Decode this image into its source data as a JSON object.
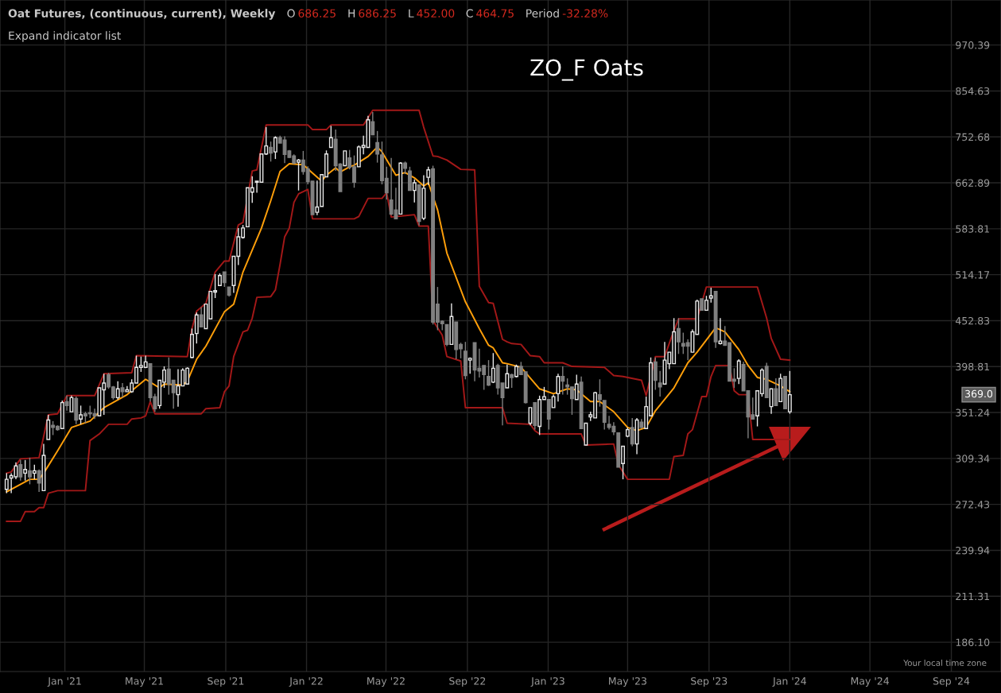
{
  "chart_data": {
    "type": "candlestick",
    "title": "ZO_F Oats",
    "subtitle": "Oat Futures, (continuous, current), Weekly",
    "annotations": [
      "O",
      "686.25",
      "H",
      "686.25",
      "L",
      "452.00",
      "C",
      "464.75",
      "Period",
      "-32.28%",
      "Expand indicator list",
      "Your local time zone",
      {
        "text": "369.0",
        "y": 369
      }
    ],
    "x": [
      "2020-10-05",
      "2020-10-12",
      "2020-10-19",
      "2020-10-26",
      "2020-11-02",
      "2020-11-09",
      "2020-11-16",
      "2020-11-23",
      "2020-11-30",
      "2020-12-07",
      "2020-12-14",
      "2020-12-21",
      "2020-12-28",
      "2021-01-04",
      "2021-01-11",
      "2021-01-18",
      "2021-01-25",
      "2021-02-01",
      "2021-02-08",
      "2021-02-15",
      "2021-02-22",
      "2021-03-01",
      "2021-03-08",
      "2021-03-15",
      "2021-03-22",
      "2021-03-29",
      "2021-04-05",
      "2021-04-12",
      "2021-04-19",
      "2021-04-26",
      "2021-05-03",
      "2021-05-10",
      "2021-05-17",
      "2021-05-24",
      "2021-05-31",
      "2021-06-07",
      "2021-06-14",
      "2021-06-21",
      "2021-06-28",
      "2021-07-05",
      "2021-07-12",
      "2021-07-19",
      "2021-07-26",
      "2021-08-02",
      "2021-08-09",
      "2021-08-16",
      "2021-08-23",
      "2021-08-30",
      "2021-09-06",
      "2021-09-13",
      "2021-09-20",
      "2021-09-27",
      "2021-10-04",
      "2021-10-11",
      "2021-10-18",
      "2021-10-25",
      "2021-11-01",
      "2021-11-08",
      "2021-11-15",
      "2021-11-22",
      "2021-11-29",
      "2021-12-06",
      "2021-12-13",
      "2021-12-20",
      "2021-12-27",
      "2022-01-03",
      "2022-01-10",
      "2022-01-17",
      "2022-01-24",
      "2022-01-31",
      "2022-02-07",
      "2022-02-14",
      "2022-02-21",
      "2022-02-28",
      "2022-03-07",
      "2022-03-14",
      "2022-03-21",
      "2022-03-28",
      "2022-04-04",
      "2022-04-11",
      "2022-04-18",
      "2022-04-25",
      "2022-05-02",
      "2022-05-09",
      "2022-05-16",
      "2022-05-23",
      "2022-05-30",
      "2022-06-06",
      "2022-06-13",
      "2022-06-20",
      "2022-06-27",
      "2022-07-04",
      "2022-07-11",
      "2022-07-18",
      "2022-07-25",
      "2022-08-01",
      "2022-08-08",
      "2022-08-15",
      "2022-08-22",
      "2022-08-29",
      "2022-09-05",
      "2022-09-12",
      "2022-09-19",
      "2022-09-26",
      "2022-10-03",
      "2022-10-10",
      "2022-10-17",
      "2022-10-24",
      "2022-10-31",
      "2022-11-07",
      "2022-11-14",
      "2022-11-21",
      "2022-11-28",
      "2022-12-05",
      "2022-12-12",
      "2022-12-19",
      "2022-12-26",
      "2023-01-02",
      "2023-01-09",
      "2023-01-16",
      "2023-01-23",
      "2023-01-30",
      "2023-02-06",
      "2023-02-13",
      "2023-02-20",
      "2023-02-27",
      "2023-03-06",
      "2023-03-13",
      "2023-03-20",
      "2023-03-27",
      "2023-04-03",
      "2023-04-10",
      "2023-04-17",
      "2023-04-24",
      "2023-05-01",
      "2023-05-08",
      "2023-05-15",
      "2023-05-22",
      "2023-05-29",
      "2023-06-05",
      "2023-06-12",
      "2023-06-19",
      "2023-06-26",
      "2023-07-03",
      "2023-07-10",
      "2023-07-17",
      "2023-07-24",
      "2023-07-31",
      "2023-08-07",
      "2023-08-14",
      "2023-08-21",
      "2023-08-28",
      "2023-09-04",
      "2023-09-11",
      "2023-09-18",
      "2023-09-25",
      "2023-10-02",
      "2023-10-09",
      "2023-10-16",
      "2023-10-23",
      "2023-10-30",
      "2023-11-06",
      "2023-11-13",
      "2023-11-20",
      "2023-11-27",
      "2023-12-04",
      "2023-12-11",
      "2023-12-18",
      "2023-12-25",
      "2024-01-01"
    ],
    "ohlc": [
      [
        284,
        297,
        281,
        292
      ],
      [
        293,
        297,
        281,
        295
      ],
      [
        294,
        306,
        292,
        303
      ],
      [
        304,
        308,
        291,
        294
      ],
      [
        297,
        308,
        291,
        300
      ],
      [
        299,
        310,
        288,
        294
      ],
      [
        297,
        304,
        292,
        299
      ],
      [
        299,
        300,
        282,
        289
      ],
      [
        283,
        322,
        283,
        312
      ],
      [
        326,
        349,
        326,
        344
      ],
      [
        339,
        343,
        330,
        337
      ],
      [
        338,
        339,
        334,
        335
      ],
      [
        336,
        363,
        336,
        361
      ],
      [
        362,
        368,
        353,
        358
      ],
      [
        352,
        368,
        352,
        366
      ],
      [
        365,
        367,
        340,
        344
      ],
      [
        345,
        358,
        340,
        349
      ],
      [
        350,
        352,
        341,
        348
      ],
      [
        351,
        358,
        346,
        350
      ],
      [
        350,
        355,
        345,
        348
      ],
      [
        348,
        376,
        348,
        376
      ],
      [
        374,
        391,
        349,
        381
      ],
      [
        390,
        392,
        375,
        377
      ],
      [
        377,
        378,
        364,
        366
      ],
      [
        366,
        383,
        364,
        375
      ],
      [
        376,
        381,
        366,
        372
      ],
      [
        372,
        378,
        372,
        374
      ],
      [
        372,
        385,
        371,
        381
      ],
      [
        381,
        411,
        381,
        398
      ],
      [
        398,
        410,
        393,
        400
      ],
      [
        398,
        411,
        397,
        404
      ],
      [
        402,
        402,
        362,
        366
      ],
      [
        367,
        370,
        352,
        355
      ],
      [
        358,
        384,
        355,
        384
      ],
      [
        382,
        399,
        376,
        395
      ],
      [
        396,
        409,
        369,
        380
      ],
      [
        384,
        384,
        355,
        371
      ],
      [
        369,
        396,
        357,
        378
      ],
      [
        378,
        397,
        378,
        395
      ],
      [
        380,
        398,
        380,
        397
      ],
      [
        409,
        443,
        408,
        436
      ],
      [
        437,
        463,
        425,
        460
      ],
      [
        460,
        470,
        445,
        445
      ],
      [
        443,
        474,
        443,
        474
      ],
      [
        455,
        491,
        455,
        491
      ],
      [
        490,
        515,
        482,
        492
      ],
      [
        499,
        516,
        499,
        513
      ],
      [
        518,
        518,
        497,
        503
      ],
      [
        497,
        497,
        484,
        486
      ],
      [
        499,
        541,
        489,
        541
      ],
      [
        541,
        585,
        528,
        571
      ],
      [
        570,
        590,
        568,
        585
      ],
      [
        587,
        654,
        587,
        654
      ],
      [
        646,
        675,
        627,
        654
      ],
      [
        664,
        666,
        645,
        666
      ],
      [
        664,
        718,
        664,
        718
      ],
      [
        718,
        773,
        716,
        734
      ],
      [
        731,
        743,
        703,
        720
      ],
      [
        722,
        754,
        708,
        751
      ],
      [
        751,
        755,
        740,
        740
      ],
      [
        746,
        754,
        700,
        717
      ],
      [
        724,
        726,
        710,
        711
      ],
      [
        714,
        717,
        698,
        700
      ],
      [
        702,
        708,
        649,
        706
      ],
      [
        706,
        724,
        678,
        684
      ],
      [
        689,
        694,
        660,
        665
      ],
      [
        666,
        666,
        607,
        607
      ],
      [
        611,
        667,
        606,
        620
      ],
      [
        621,
        678,
        621,
        678
      ],
      [
        674,
        725,
        674,
        718
      ],
      [
        731,
        776,
        731,
        751
      ],
      [
        748,
        768,
        685,
        695
      ],
      [
        698,
        700,
        647,
        647
      ],
      [
        695,
        724,
        695,
        724
      ],
      [
        710,
        726,
        688,
        692
      ],
      [
        693,
        715,
        654,
        664
      ],
      [
        693,
        735,
        693,
        732
      ],
      [
        731,
        755,
        717,
        735
      ],
      [
        731,
        798,
        731,
        789
      ],
      [
        785,
        806,
        757,
        757
      ],
      [
        741,
        765,
        701,
        718
      ],
      [
        716,
        743,
        660,
        667
      ],
      [
        671,
        693,
        633,
        645
      ],
      [
        632,
        710,
        606,
        608
      ],
      [
        615,
        654,
        600,
        600
      ],
      [
        608,
        702,
        608,
        700
      ],
      [
        700,
        703,
        679,
        690
      ],
      [
        685,
        693,
        649,
        649
      ],
      [
        649,
        669,
        628,
        663
      ],
      [
        659,
        659,
        589,
        596
      ],
      [
        601,
        677,
        598,
        653
      ],
      [
        673,
        693,
        659,
        687
      ],
      [
        689,
        695,
        448,
        451
      ],
      [
        474,
        497,
        441,
        451
      ],
      [
        452,
        453,
        441,
        449
      ],
      [
        448,
        448,
        422,
        424
      ],
      [
        424,
        475,
        424,
        458
      ],
      [
        451,
        451,
        407,
        418
      ],
      [
        424,
        426,
        408,
        419
      ],
      [
        416,
        427,
        385,
        389
      ],
      [
        406,
        409,
        391,
        408
      ],
      [
        426,
        426,
        383,
        395
      ],
      [
        397,
        419,
        387,
        394
      ],
      [
        400,
        400,
        374,
        390
      ],
      [
        388,
        406,
        378,
        379
      ],
      [
        382,
        414,
        381,
        397
      ],
      [
        400,
        402,
        369,
        376
      ],
      [
        381,
        381,
        339,
        366
      ],
      [
        376,
        401,
        376,
        391
      ],
      [
        390,
        391,
        376,
        387
      ],
      [
        388,
        401,
        387,
        399
      ],
      [
        399,
        404,
        390,
        390
      ],
      [
        393,
        393,
        360,
        361
      ],
      [
        341,
        356,
        339,
        356
      ],
      [
        361,
        361,
        335,
        339
      ],
      [
        338,
        368,
        330,
        364
      ],
      [
        364,
        377,
        364,
        367
      ],
      [
        364,
        364,
        335,
        345
      ],
      [
        356,
        369,
        356,
        367
      ],
      [
        370,
        391,
        362,
        388
      ],
      [
        388,
        399,
        369,
        383
      ],
      [
        379,
        386,
        369,
        377
      ],
      [
        377,
        377,
        349,
        365
      ],
      [
        364,
        390,
        364,
        380
      ],
      [
        382,
        388,
        336,
        336
      ],
      [
        321,
        341,
        321,
        341
      ],
      [
        347,
        352,
        343,
        349
      ],
      [
        346,
        372,
        346,
        371
      ],
      [
        369,
        385,
        357,
        364
      ],
      [
        363,
        363,
        335,
        342
      ],
      [
        340,
        348,
        335,
        337
      ],
      [
        338,
        342,
        330,
        333
      ],
      [
        332,
        332,
        302,
        302
      ],
      [
        305,
        320,
        292,
        320
      ],
      [
        329,
        337,
        328,
        335
      ],
      [
        337,
        346,
        320,
        322
      ],
      [
        322,
        346,
        313,
        344
      ],
      [
        342,
        345,
        336,
        337
      ],
      [
        336,
        367,
        336,
        357
      ],
      [
        348,
        409,
        348,
        403
      ],
      [
        404,
        409,
        374,
        384
      ],
      [
        381,
        394,
        367,
        377
      ],
      [
        380,
        427,
        380,
        406
      ],
      [
        402,
        415,
        396,
        415
      ],
      [
        402,
        456,
        402,
        439
      ],
      [
        443,
        456,
        413,
        427
      ],
      [
        425,
        438,
        413,
        422
      ],
      [
        426,
        430,
        406,
        422
      ],
      [
        415,
        442,
        415,
        439
      ],
      [
        436,
        480,
        436,
        478
      ],
      [
        481,
        481,
        466,
        466
      ],
      [
        466,
        485,
        466,
        479
      ],
      [
        482,
        496,
        476,
        485
      ],
      [
        491,
        491,
        420,
        427
      ],
      [
        425,
        456,
        424,
        428
      ],
      [
        428,
        446,
        423,
        423
      ],
      [
        426,
        426,
        383,
        383
      ],
      [
        385,
        397,
        376,
        383
      ],
      [
        386,
        407,
        380,
        405
      ],
      [
        401,
        404,
        373,
        373
      ],
      [
        373,
        373,
        327,
        347
      ],
      [
        349,
        366,
        345,
        345
      ],
      [
        348,
        373,
        338,
        373
      ],
      [
        370,
        397,
        367,
        395
      ],
      [
        399,
        403,
        366,
        366
      ],
      [
        357,
        375,
        350,
        375
      ],
      [
        375,
        386,
        358,
        358
      ],
      [
        362,
        391,
        362,
        386
      ],
      [
        388,
        388,
        355,
        355
      ],
      [
        352,
        394,
        350,
        369
      ]
    ],
    "series": [
      {
        "type": "line",
        "color": "#a31818",
        "x": [
          "2020-10-05",
          "2020-10-12",
          "2020-10-26",
          "2020-11-23",
          "2020-12-07",
          "2020-12-21",
          "2021-01-04",
          "2021-02-15",
          "2021-03-01",
          "2021-04-12",
          "2021-04-19",
          "2021-07-05",
          "2021-07-12",
          "2021-07-19",
          "2021-08-02",
          "2021-08-16",
          "2021-08-30",
          "2021-09-06",
          "2021-09-20",
          "2021-09-27",
          "2021-10-11",
          "2021-10-18",
          "2021-11-01",
          "2022-01-03",
          "2022-01-10",
          "2022-01-31",
          "2022-02-07",
          "2022-03-28",
          "2022-04-11",
          "2022-06-20",
          "2022-06-27",
          "2022-07-11",
          "2022-07-18",
          "2022-08-01",
          "2022-08-22",
          "2022-09-12",
          "2022-09-19",
          "2022-10-03",
          "2022-10-10",
          "2022-10-24",
          "2022-10-31",
          "2022-11-07",
          "2022-11-21",
          "2022-12-05",
          "2022-12-19",
          "2022-12-26",
          "2023-01-23",
          "2023-02-06",
          "2023-03-27",
          "2023-04-10",
          "2023-04-24",
          "2023-05-22",
          "2023-05-29",
          "2023-06-12",
          "2023-06-26",
          "2023-07-06",
          "2023-07-17",
          "2023-08-14",
          "2023-08-28",
          "2023-11-13",
          "2023-11-27",
          "2023-12-04",
          "2023-12-18",
          "2024-01-01"
        ],
        "values": [
          297,
          298,
          309,
          310,
          349,
          350,
          368,
          368,
          391,
          392,
          411,
          410,
          443,
          465,
          475,
          518,
          534,
          534,
          590,
          594,
          685,
          687,
          778,
          778,
          768,
          768,
          778,
          778,
          810,
          810,
          773,
          714,
          713,
          706,
          688,
          687,
          498,
          476,
          475,
          430,
          427,
          425,
          424,
          411,
          410,
          403,
          403,
          399,
          398,
          389,
          388,
          384,
          368,
          410,
          410,
          432,
          455,
          455,
          497,
          497,
          456,
          431,
          407,
          406
        ]
      },
      {
        "type": "line",
        "color": "#a31818",
        "x": [
          "2020-10-05",
          "2020-10-26",
          "2020-11-02",
          "2020-11-16",
          "2020-11-23",
          "2020-11-30",
          "2020-12-07",
          "2020-12-21",
          "2021-02-01",
          "2021-02-08",
          "2021-02-22",
          "2021-03-08",
          "2021-04-05",
          "2021-04-12",
          "2021-04-26",
          "2021-05-03",
          "2021-05-10",
          "2021-05-17",
          "2021-07-26",
          "2021-08-02",
          "2021-08-23",
          "2021-08-30",
          "2021-09-06",
          "2021-09-13",
          "2021-09-27",
          "2021-10-04",
          "2021-10-11",
          "2021-10-18",
          "2021-11-08",
          "2021-11-15",
          "2021-11-22",
          "2021-11-29",
          "2021-12-06",
          "2021-12-13",
          "2021-12-20",
          "2022-01-03",
          "2022-01-10",
          "2022-03-14",
          "2022-03-21",
          "2022-04-04",
          "2022-04-25",
          "2022-05-02",
          "2022-05-09",
          "2022-06-13",
          "2022-06-20",
          "2022-07-04",
          "2022-07-11",
          "2022-07-25",
          "2022-08-01",
          "2022-08-22",
          "2022-08-29",
          "2022-10-24",
          "2022-10-31",
          "2022-12-05",
          "2022-12-12",
          "2022-12-19",
          "2023-02-20",
          "2023-02-27",
          "2023-04-10",
          "2023-04-17",
          "2023-05-01",
          "2023-07-03",
          "2023-07-10",
          "2023-07-24",
          "2023-07-31",
          "2023-08-07",
          "2023-08-21",
          "2023-08-28",
          "2023-09-04",
          "2023-09-11",
          "2023-10-02",
          "2023-10-09",
          "2023-10-16",
          "2023-10-30",
          "2023-11-06",
          "2024-01-01"
        ],
        "values": [
          260,
          260,
          267,
          267,
          270,
          270,
          281,
          283,
          283,
          325,
          331,
          340,
          340,
          345,
          346,
          348,
          362,
          350,
          350,
          355,
          356,
          372,
          378,
          410,
          439,
          441,
          456,
          483,
          484,
          493,
          529,
          571,
          585,
          628,
          643,
          651,
          600,
          600,
          604,
          635,
          635,
          645,
          603,
          607,
          588,
          588,
          453,
          435,
          410,
          405,
          356,
          356,
          341,
          340,
          334,
          331,
          331,
          321,
          322,
          304,
          292,
          292,
          311,
          312,
          331,
          335,
          367,
          367,
          388,
          400,
          400,
          373,
          369,
          369,
          326,
          326
        ]
      },
      {
        "type": "line",
        "color": "#ff9f0a",
        "x": [
          "2020-10-05",
          "2020-11-09",
          "2020-11-23",
          "2020-11-30",
          "2020-12-21",
          "2021-01-11",
          "2021-02-08",
          "2021-03-01",
          "2021-04-05",
          "2021-05-03",
          "2021-05-24",
          "2021-05-31",
          "2021-06-28",
          "2021-07-05",
          "2021-07-19",
          "2021-08-02",
          "2021-08-30",
          "2021-09-13",
          "2021-09-27",
          "2021-10-25",
          "2021-11-08",
          "2021-11-22",
          "2021-12-06",
          "2021-12-27",
          "2022-01-10",
          "2022-01-24",
          "2022-01-31",
          "2022-02-14",
          "2022-02-21",
          "2022-03-07",
          "2022-03-14",
          "2022-04-04",
          "2022-04-18",
          "2022-04-25",
          "2022-05-16",
          "2022-05-30",
          "2022-06-13",
          "2022-06-27",
          "2022-07-04",
          "2022-07-18",
          "2022-08-01",
          "2022-08-29",
          "2022-09-19",
          "2022-10-03",
          "2022-10-10",
          "2022-10-24",
          "2022-10-31",
          "2022-11-21",
          "2022-12-19",
          "2023-01-09",
          "2023-01-30",
          "2023-02-13",
          "2023-03-06",
          "2023-03-20",
          "2023-04-10",
          "2023-05-01",
          "2023-05-15",
          "2023-05-29",
          "2023-06-12",
          "2023-07-03",
          "2023-07-10",
          "2023-07-31",
          "2023-08-14",
          "2023-09-11",
          "2023-09-25",
          "2023-10-16",
          "2023-10-30",
          "2023-11-13",
          "2023-11-27",
          "2023-12-18",
          "2024-01-01"
        ],
        "values": [
          282,
          292,
          292,
          297,
          316,
          337,
          343,
          356,
          369,
          385,
          376,
          380,
          379,
          383,
          407,
          422,
          464,
          474,
          518,
          585,
          631,
          684,
          699,
          697,
          681,
          666,
          677,
          691,
          683,
          693,
          696,
          713,
          732,
          722,
          677,
          682,
          672,
          657,
          663,
          615,
          546,
          477,
          443,
          423,
          420,
          403,
          402,
          398,
          375,
          370,
          375,
          374,
          362,
          362,
          352,
          337,
          334,
          337,
          353,
          370,
          376,
          403,
          415,
          444,
          439,
          418,
          400,
          387,
          385,
          378,
          372
        ]
      }
    ],
    "xlim": [
      "2020-09-25",
      "2024-11-15"
    ],
    "ylim": [
      171.6,
      1099
    ],
    "xticks": [
      {
        "value": "2021-01-01",
        "label": "Jan '21"
      },
      {
        "value": "2021-05-01",
        "label": "May '21"
      },
      {
        "value": "2021-09-01",
        "label": "Sep '21"
      },
      {
        "value": "2022-01-01",
        "label": "Jan '22"
      },
      {
        "value": "2022-05-01",
        "label": "May '22"
      },
      {
        "value": "2022-09-01",
        "label": "Sep '22"
      },
      {
        "value": "2023-01-01",
        "label": "Jan '23"
      },
      {
        "value": "2023-05-01",
        "label": "May '23"
      },
      {
        "value": "2023-09-01",
        "label": "Sep '23"
      },
      {
        "value": "2024-01-01",
        "label": "Jan '24"
      },
      {
        "value": "2024-05-01",
        "label": "May '24"
      },
      {
        "value": "2024-09-01",
        "label": "Sep '24"
      }
    ],
    "yticks": [
      {
        "value": 186.1,
        "label": "186.10"
      },
      {
        "value": 211.31,
        "label": "211.31"
      },
      {
        "value": 239.94,
        "label": "239.94"
      },
      {
        "value": 272.43,
        "label": "272.43"
      },
      {
        "value": 309.34,
        "label": "309.34"
      },
      {
        "value": 351.24,
        "label": "351.24"
      },
      {
        "value": 398.81,
        "label": "398.81"
      },
      {
        "value": 452.83,
        "label": "452.83"
      },
      {
        "value": 514.17,
        "label": "514.17"
      },
      {
        "value": 583.81,
        "label": "583.81"
      },
      {
        "value": 662.89,
        "label": "662.89"
      },
      {
        "value": 752.68,
        "label": "752.68"
      },
      {
        "value": 854.63,
        "label": "854.63"
      },
      {
        "value": 970.39,
        "label": "970.39"
      }
    ],
    "log": true,
    "grid": true
  }
}
